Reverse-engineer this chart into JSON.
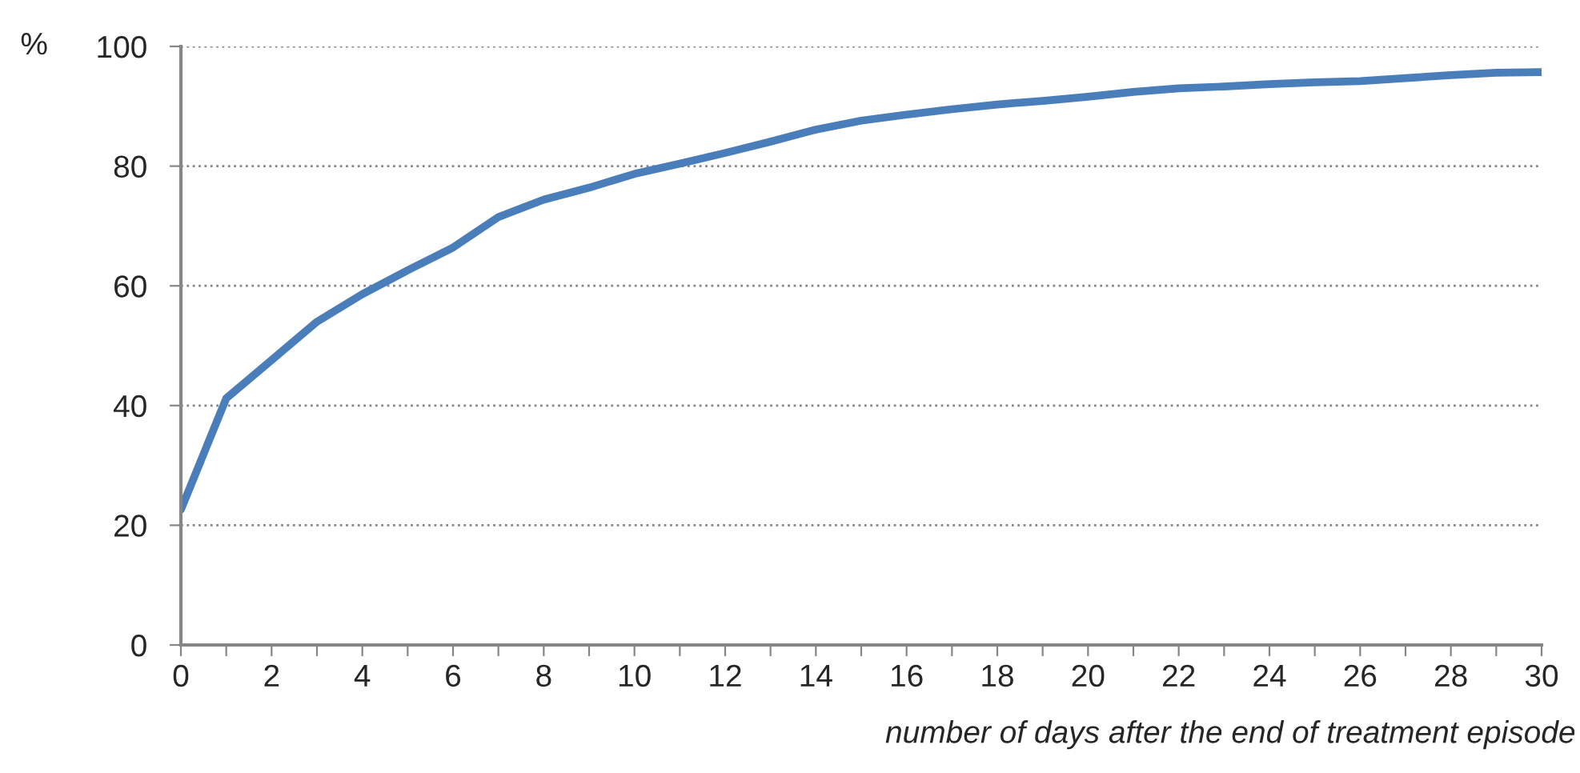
{
  "chart_data": {
    "type": "line",
    "ylabel": "%",
    "xlabel": "number of days after the end of treatment episode",
    "x": [
      0,
      1,
      2,
      3,
      4,
      5,
      6,
      7,
      8,
      9,
      10,
      11,
      12,
      13,
      14,
      15,
      16,
      17,
      18,
      19,
      20,
      21,
      22,
      23,
      24,
      25,
      26,
      27,
      28,
      29,
      30
    ],
    "series": [
      {
        "color": "#4a7ebb",
        "values": [
          22.6,
          41.2,
          47.6,
          54.0,
          58.6,
          62.6,
          66.4,
          71.5,
          74.4,
          76.4,
          78.7,
          80.4,
          82.2,
          84.1,
          86.1,
          87.6,
          88.6,
          89.5,
          90.3,
          90.9,
          91.6,
          92.4,
          93.0,
          93.3,
          93.7,
          94.0,
          94.2,
          94.7,
          95.2,
          95.6,
          95.7
        ]
      }
    ],
    "xlim": [
      0,
      30
    ],
    "ylim": [
      0,
      100
    ],
    "xticks": [
      0,
      {
        "value": 1,
        "label": null
      },
      2,
      {
        "value": 3,
        "label": null
      },
      4,
      {
        "value": 5,
        "label": null
      },
      6,
      {
        "value": 7,
        "label": null
      },
      8,
      {
        "value": 9,
        "label": null
      },
      10,
      {
        "value": 11,
        "label": null
      },
      12,
      {
        "value": 13,
        "label": null
      },
      14,
      {
        "value": 15,
        "label": null
      },
      16,
      {
        "value": 17,
        "label": null
      },
      18,
      {
        "value": 19,
        "label": null
      },
      20,
      {
        "value": 21,
        "label": null
      },
      22,
      {
        "value": 23,
        "label": null
      },
      24,
      {
        "value": 25,
        "label": null
      },
      26,
      {
        "value": 27,
        "label": null
      },
      28,
      {
        "value": 29,
        "label": null
      },
      30
    ],
    "yticks": [
      0,
      20,
      40,
      60,
      80,
      100
    ],
    "grid": "y",
    "marker": "none",
    "line_style": "solid"
  }
}
